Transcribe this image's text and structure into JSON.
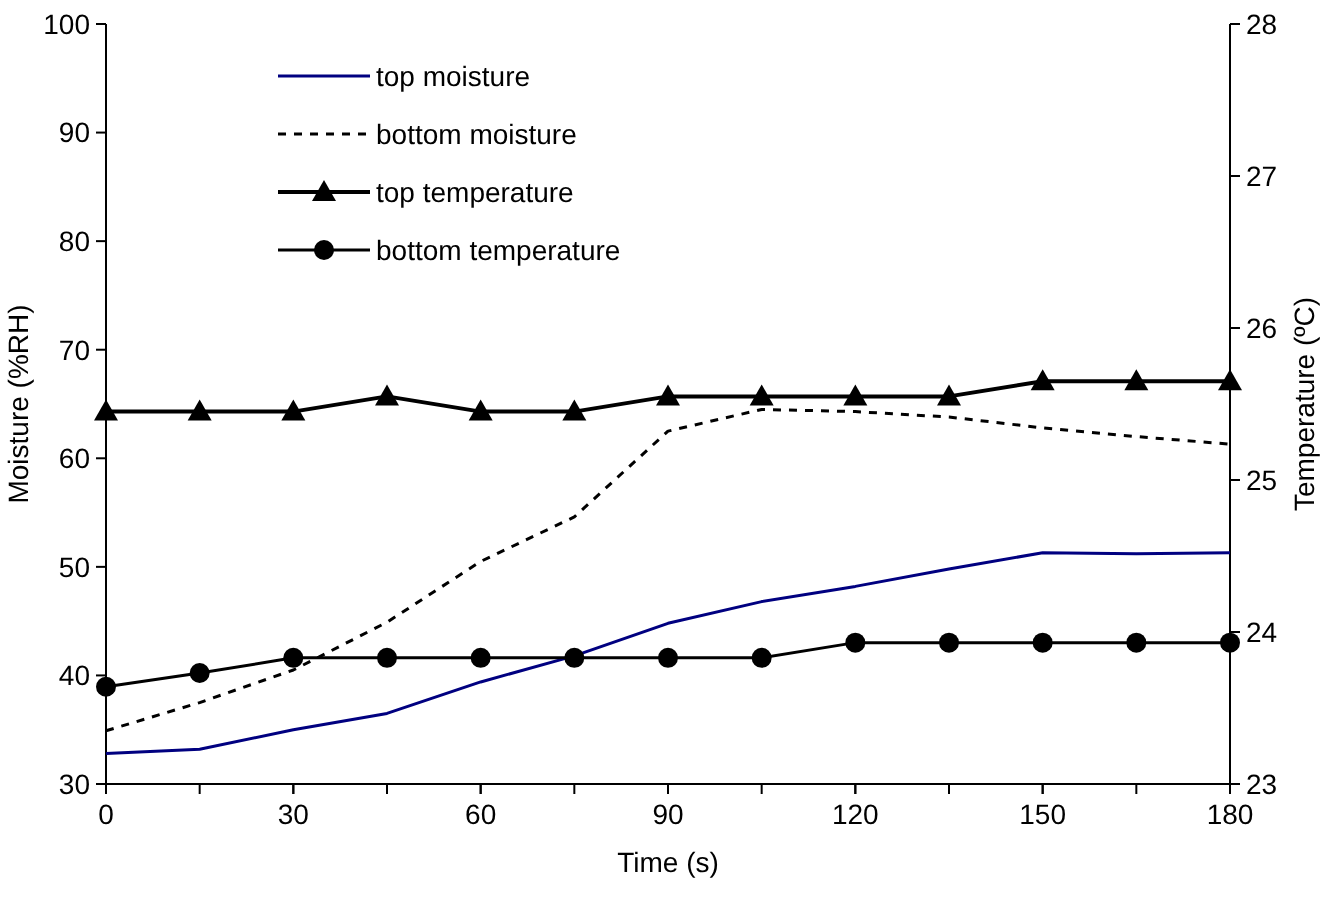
{
  "chart_data": {
    "type": "line",
    "xlabel": "Time (s)",
    "ylabel": "Moisture (%RH)",
    "y2label": "Temperature (ºC)",
    "x": [
      0,
      15,
      30,
      45,
      60,
      75,
      90,
      105,
      120,
      135,
      150,
      165,
      180
    ],
    "xlim": [
      0,
      180
    ],
    "xticks": [
      0,
      30,
      60,
      90,
      120,
      150,
      180
    ],
    "ylim": [
      30,
      100
    ],
    "yticks": [
      30,
      40,
      50,
      60,
      70,
      80,
      90,
      100
    ],
    "y2lim": [
      23,
      28
    ],
    "y2ticks": [
      23,
      24,
      25,
      26,
      27,
      28
    ],
    "legend": "top left",
    "grid": false,
    "series": [
      {
        "name": "top moisture",
        "color": "#000080",
        "marker": "none",
        "line_style": "solid",
        "values": [
          32.8,
          33.2,
          35,
          36.5,
          39.4,
          41.8,
          44.8,
          46.8,
          48.2,
          49.8,
          51.3,
          51.2,
          51.3
        ]
      },
      {
        "name": "bottom moisture",
        "color": "#000000",
        "marker": "none",
        "line_style": "dashed",
        "values": [
          34.9,
          37.5,
          40.5,
          44.9,
          50.5,
          54.6,
          62.5,
          64.5,
          64.3,
          63.8,
          62.8,
          62,
          61.3
        ]
      },
      {
        "name": "top temperature",
        "color": "#000000",
        "marker": "triangle",
        "line_style": "solid",
        "axis": "y2",
        "values": [
          25.45,
          25.45,
          25.45,
          25.55,
          25.45,
          25.45,
          25.55,
          25.55,
          25.55,
          25.55,
          25.65,
          25.65,
          25.65
        ]
      },
      {
        "name": "bottom temperature",
        "color": "#000000",
        "marker": "circle",
        "line_style": "solid",
        "axis": "y2",
        "values": [
          23.64,
          23.73,
          23.83,
          23.83,
          23.83,
          23.83,
          23.83,
          23.83,
          23.93,
          23.93,
          23.93,
          23.93,
          23.93
        ]
      }
    ]
  }
}
